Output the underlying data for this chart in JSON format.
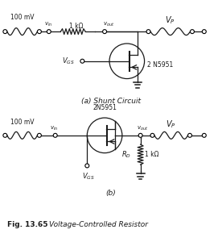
{
  "bg_color": "#ffffff",
  "line_color": "#1a1a1a",
  "text_color": "#1a1a1a",
  "subtitle_a": "(a) Shunt Circuit",
  "subtitle_b": "(b)",
  "fig_label": "Fig. 13.65",
  "fig_desc": "Voltage-Controlled Resistor",
  "label_100mv": "100 mV",
  "label_vp": "V",
  "label_vp_sub": "P",
  "label_vin": "v",
  "label_vin_sub": "in",
  "label_vout": "v",
  "label_vout_sub": "out",
  "label_1kohm": "1 kΩ",
  "label_2n5951_a": "2 N5951",
  "label_vgs": "V",
  "label_vgs_sub": "GS",
  "label_2n5951_b": "2N5951",
  "label_rd": "R",
  "label_rd_sub": "D"
}
